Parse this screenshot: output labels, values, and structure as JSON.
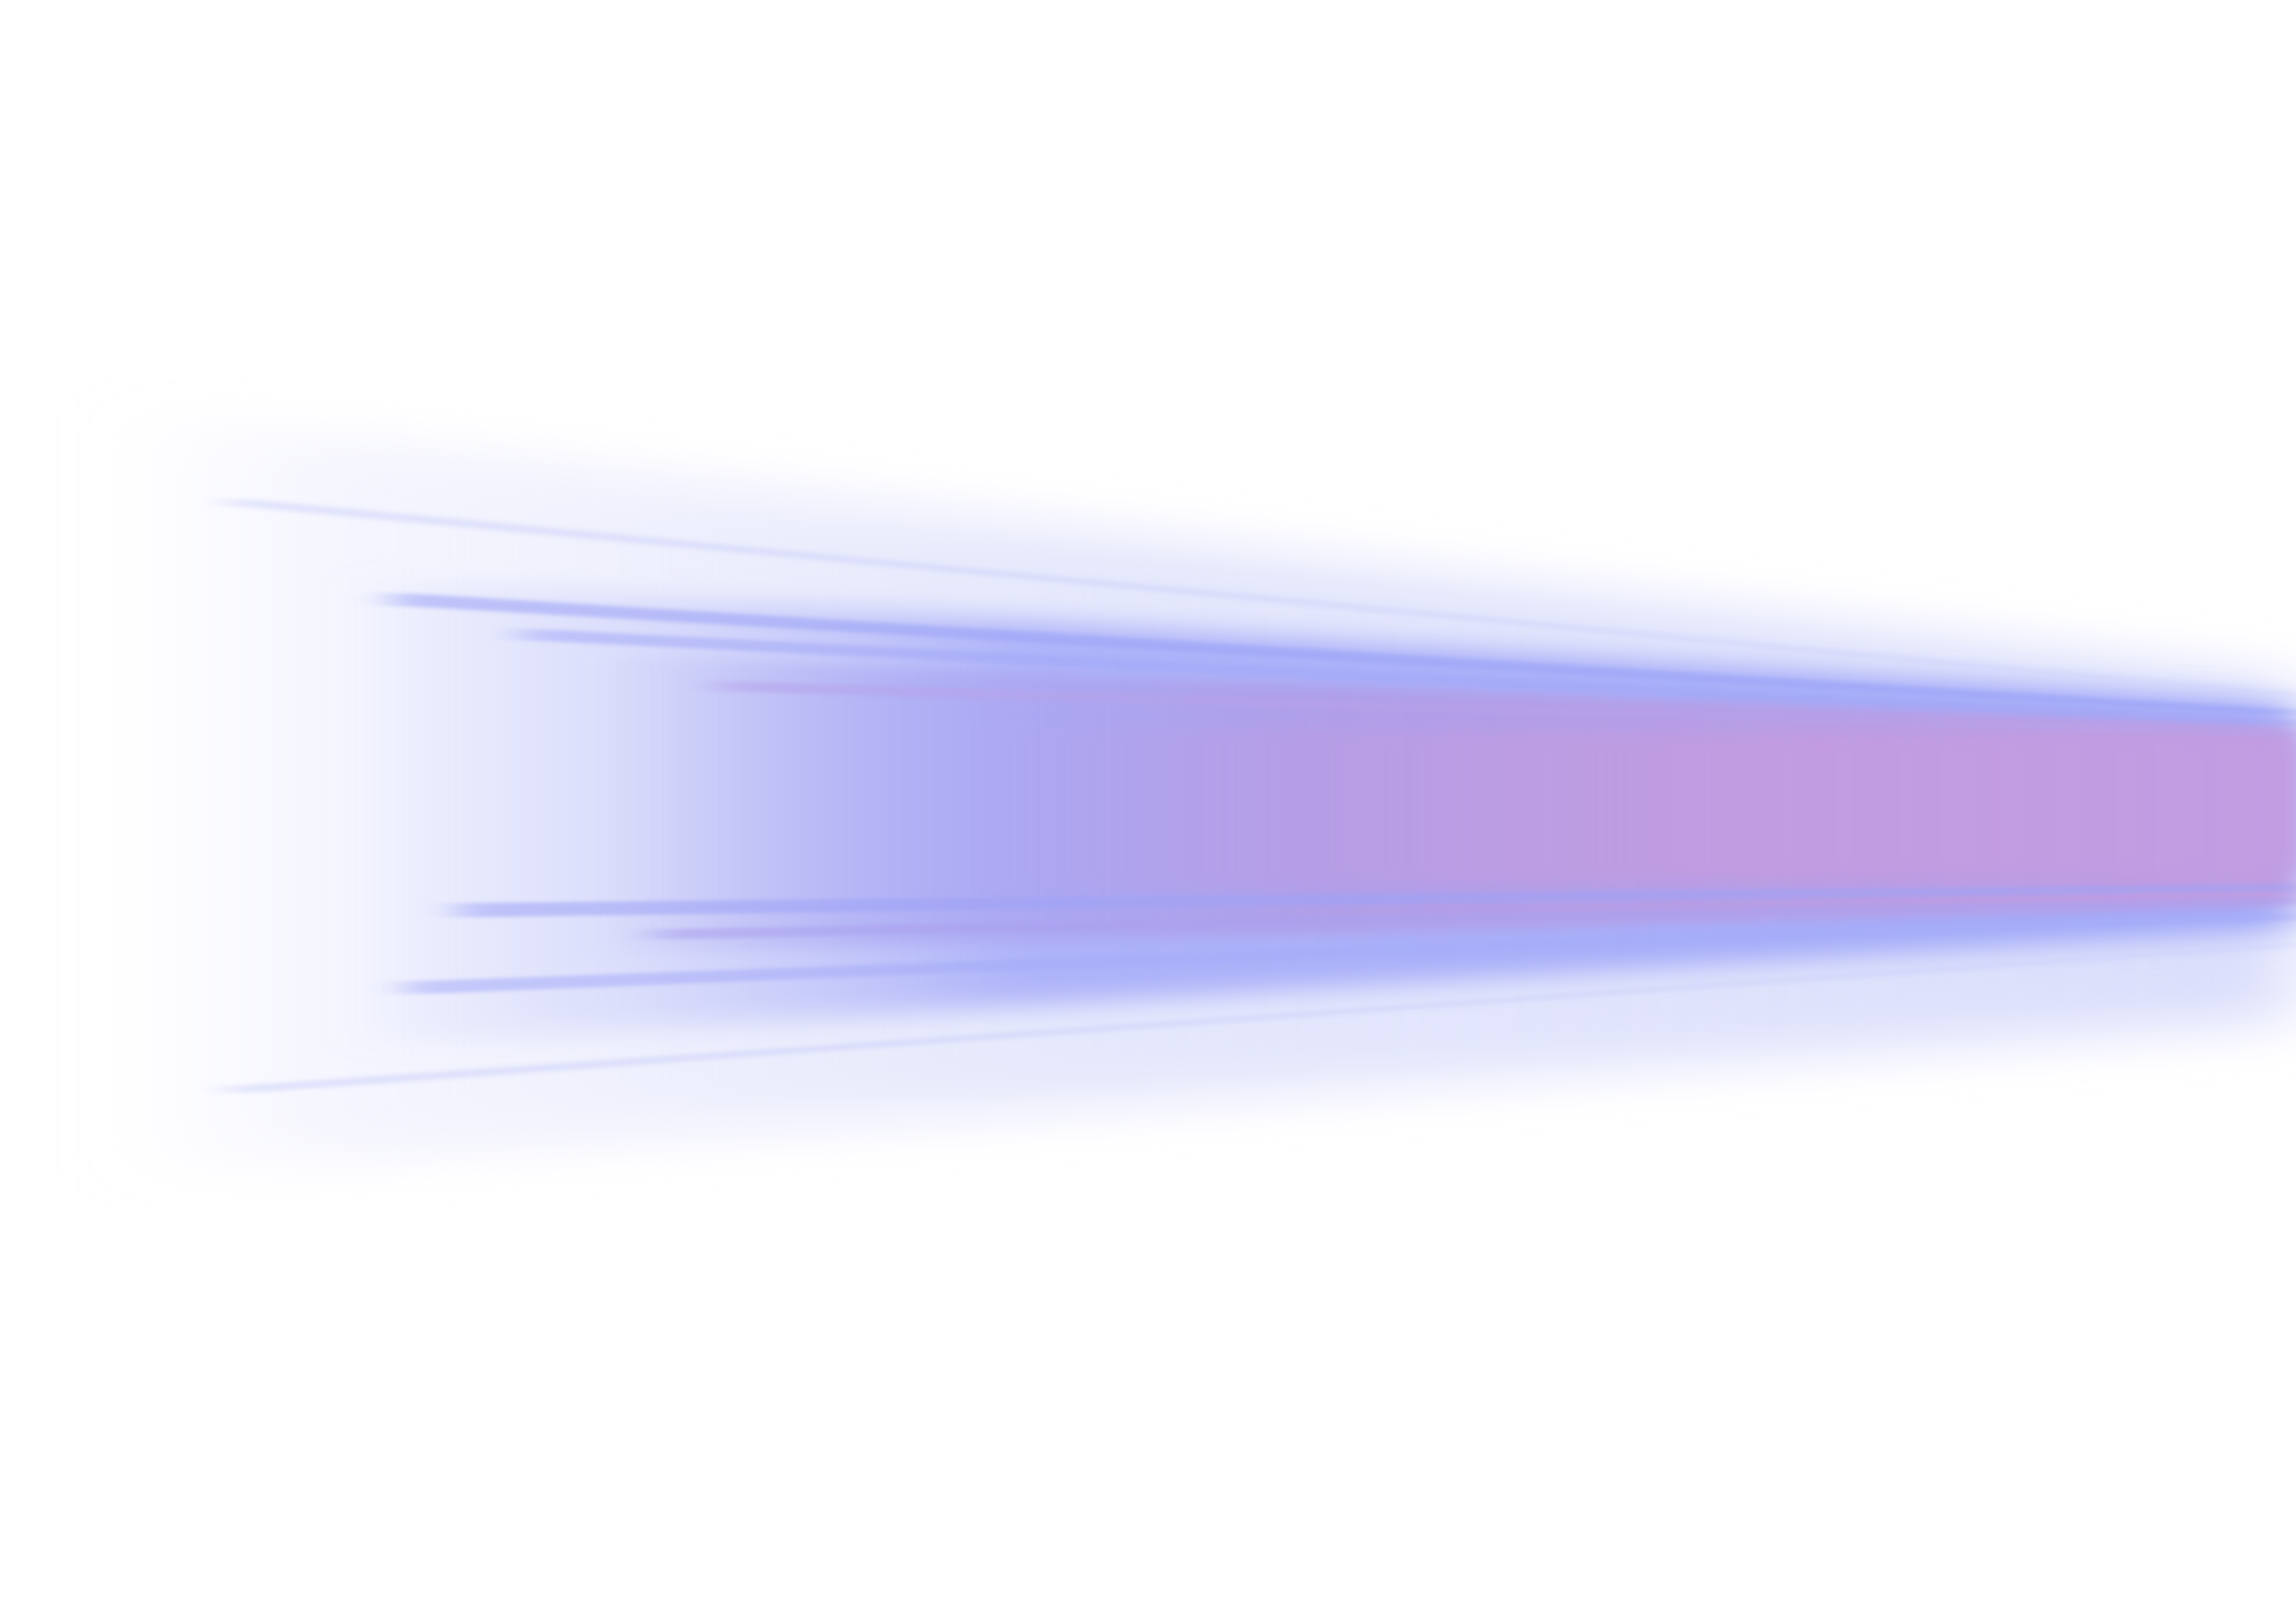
{
  "artwork": {
    "subject": "light-streak-icon",
    "colors": {
      "background": "#ffffff",
      "outer_haze": "#dfe2fb",
      "mid_blue": "#a4aaf8",
      "core_violet": "#a8a2f0",
      "core_pink": "#c19ce1"
    }
  }
}
